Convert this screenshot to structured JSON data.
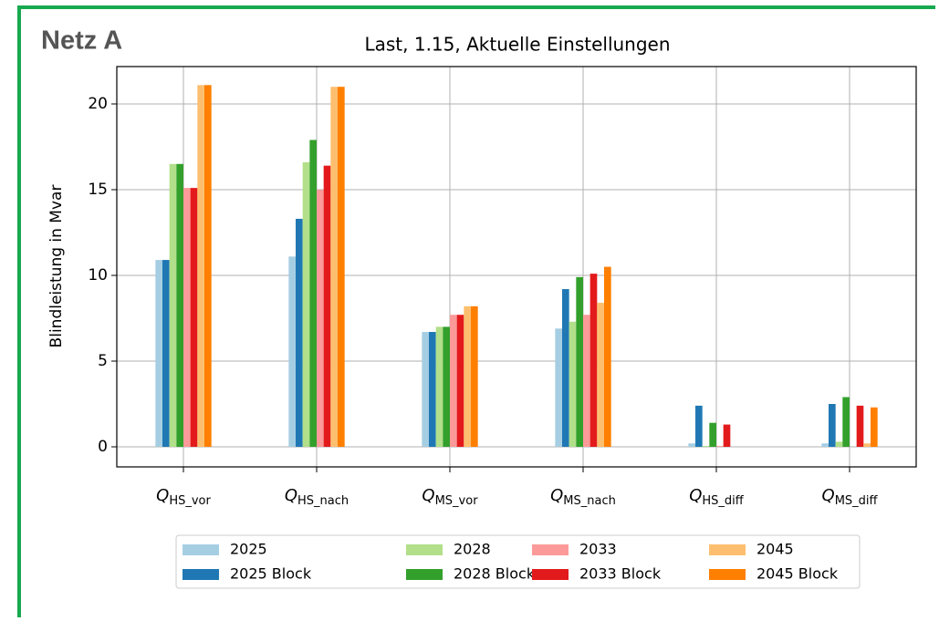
{
  "header": {
    "title": "Netz A"
  },
  "chart_data": {
    "type": "bar",
    "title": "Last, 1.15, Aktuelle Einstellungen",
    "ylabel": "Blindleistung in Mvar",
    "categories": [
      {
        "symbol": "Q",
        "subscript": "HS_vor"
      },
      {
        "symbol": "Q",
        "subscript": "HS_nach"
      },
      {
        "symbol": "Q",
        "subscript": "MS_vor"
      },
      {
        "symbol": "Q",
        "subscript": "MS_nach"
      },
      {
        "symbol": "Q",
        "subscript": "HS_diff"
      },
      {
        "symbol": "Q",
        "subscript": "MS_diff"
      }
    ],
    "series": [
      {
        "name": "2025",
        "color": "#a6cee3",
        "values": [
          10.9,
          11.1,
          6.7,
          6.9,
          0.2,
          0.2
        ]
      },
      {
        "name": "2025 Block",
        "color": "#1f78b4",
        "values": [
          10.9,
          13.3,
          6.7,
          9.2,
          2.4,
          2.5
        ]
      },
      {
        "name": "2028",
        "color": "#b2df8a",
        "values": [
          16.5,
          16.6,
          7.0,
          7.3,
          0.05,
          0.3
        ]
      },
      {
        "name": "2028 Block",
        "color": "#33a02c",
        "values": [
          16.5,
          17.9,
          7.0,
          9.9,
          1.4,
          2.9
        ]
      },
      {
        "name": "2033",
        "color": "#fb9a99",
        "values": [
          15.1,
          15.0,
          7.7,
          7.7,
          0.05,
          0.0
        ]
      },
      {
        "name": "2033 Block",
        "color": "#e31a1c",
        "values": [
          15.1,
          16.4,
          7.7,
          10.1,
          1.3,
          2.4
        ]
      },
      {
        "name": "2045",
        "color": "#fdbf6f",
        "values": [
          21.1,
          21.0,
          8.2,
          8.4,
          0.0,
          0.2
        ]
      },
      {
        "name": "2045 Block",
        "color": "#ff7f00",
        "values": [
          21.1,
          21.0,
          8.2,
          10.5,
          0.0,
          2.3
        ]
      }
    ],
    "ylim": [
      -1.17,
      22.18
    ],
    "yticks": [
      0,
      5,
      10,
      15,
      20
    ],
    "grid": true,
    "legend": "lower center"
  }
}
